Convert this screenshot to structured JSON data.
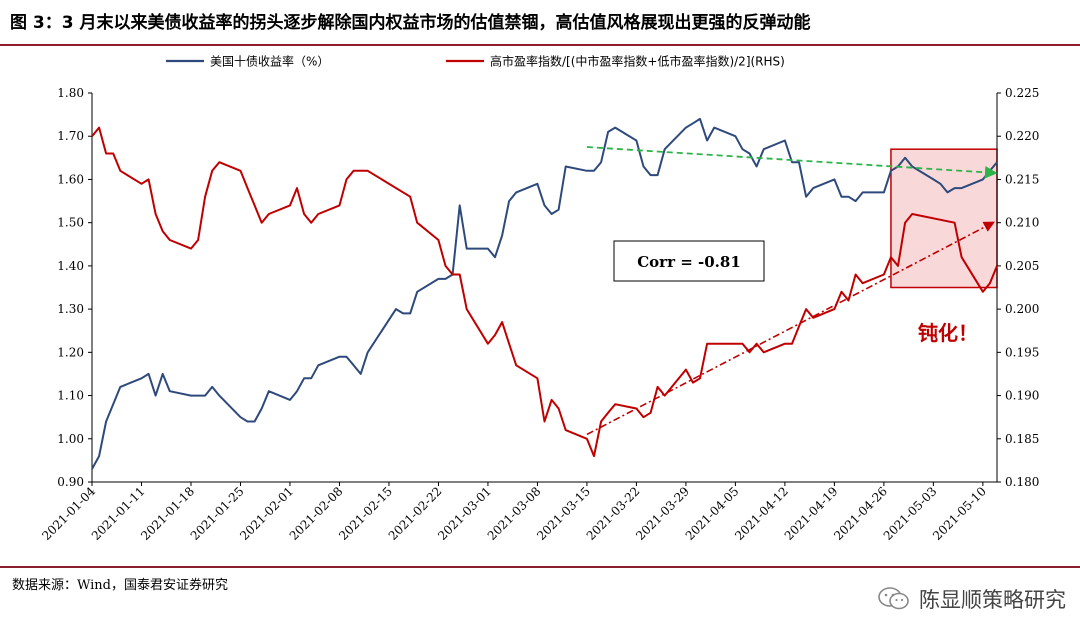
{
  "figure": {
    "title": "图 3：3 月末以来美债收益率的拐头逐步解除国内权益市场的估值禁锢，高估值风格展现出更强的反弹动能",
    "source": "数据来源：Wind，国泰君安证券研究",
    "watermark": "陈显顺策略研究"
  },
  "chart_data": {
    "type": "line",
    "title": "",
    "legend_position": "top",
    "grid": false,
    "x_ticks": [
      "2021-01-04",
      "2021-01-11",
      "2021-01-18",
      "2021-01-25",
      "2021-02-01",
      "2021-02-08",
      "2021-02-15",
      "2021-02-22",
      "2021-03-01",
      "2021-03-08",
      "2021-03-15",
      "2021-03-22",
      "2021-03-29",
      "2021-04-05",
      "2021-04-12",
      "2021-04-19",
      "2021-04-26",
      "2021-05-03",
      "2021-05-10"
    ],
    "x_range": [
      "2021-01-04",
      "2021-05-12"
    ],
    "y_left": {
      "ylim": [
        0.9,
        1.8
      ],
      "ticks": [
        "0.90",
        "1.00",
        "1.10",
        "1.20",
        "1.30",
        "1.40",
        "1.50",
        "1.60",
        "1.70",
        "1.80"
      ]
    },
    "y_right": {
      "ylim": [
        0.18,
        0.225
      ],
      "ticks": [
        "0.180",
        "0.185",
        "0.190",
        "0.195",
        "0.200",
        "0.205",
        "0.210",
        "0.215",
        "0.220",
        "0.225"
      ]
    },
    "series": [
      {
        "name": "美国十债收益率（%）",
        "color": "#2e4a7d",
        "axis": "left",
        "points": [
          [
            "2021-01-04",
            0.93
          ],
          [
            "2021-01-05",
            0.96
          ],
          [
            "2021-01-06",
            1.04
          ],
          [
            "2021-01-07",
            1.08
          ],
          [
            "2021-01-08",
            1.12
          ],
          [
            "2021-01-11",
            1.14
          ],
          [
            "2021-01-12",
            1.15
          ],
          [
            "2021-01-13",
            1.1
          ],
          [
            "2021-01-14",
            1.15
          ],
          [
            "2021-01-15",
            1.11
          ],
          [
            "2021-01-18",
            1.1
          ],
          [
            "2021-01-19",
            1.1
          ],
          [
            "2021-01-20",
            1.1
          ],
          [
            "2021-01-21",
            1.12
          ],
          [
            "2021-01-22",
            1.1
          ],
          [
            "2021-01-25",
            1.05
          ],
          [
            "2021-01-26",
            1.04
          ],
          [
            "2021-01-27",
            1.04
          ],
          [
            "2021-01-28",
            1.07
          ],
          [
            "2021-01-29",
            1.11
          ],
          [
            "2021-02-01",
            1.09
          ],
          [
            "2021-02-02",
            1.11
          ],
          [
            "2021-02-03",
            1.14
          ],
          [
            "2021-02-04",
            1.14
          ],
          [
            "2021-02-05",
            1.17
          ],
          [
            "2021-02-08",
            1.19
          ],
          [
            "2021-02-09",
            1.19
          ],
          [
            "2021-02-10",
            1.17
          ],
          [
            "2021-02-11",
            1.15
          ],
          [
            "2021-02-12",
            1.2
          ],
          [
            "2021-02-16",
            1.3
          ],
          [
            "2021-02-17",
            1.29
          ],
          [
            "2021-02-18",
            1.29
          ],
          [
            "2021-02-19",
            1.34
          ],
          [
            "2021-02-22",
            1.37
          ],
          [
            "2021-02-23",
            1.37
          ],
          [
            "2021-02-24",
            1.38
          ],
          [
            "2021-02-25",
            1.54
          ],
          [
            "2021-02-26",
            1.44
          ],
          [
            "2021-03-01",
            1.44
          ],
          [
            "2021-03-02",
            1.42
          ],
          [
            "2021-03-03",
            1.47
          ],
          [
            "2021-03-04",
            1.55
          ],
          [
            "2021-03-05",
            1.57
          ],
          [
            "2021-03-08",
            1.59
          ],
          [
            "2021-03-09",
            1.54
          ],
          [
            "2021-03-10",
            1.52
          ],
          [
            "2021-03-11",
            1.53
          ],
          [
            "2021-03-12",
            1.63
          ],
          [
            "2021-03-15",
            1.62
          ],
          [
            "2021-03-16",
            1.62
          ],
          [
            "2021-03-17",
            1.64
          ],
          [
            "2021-03-18",
            1.71
          ],
          [
            "2021-03-19",
            1.72
          ],
          [
            "2021-03-22",
            1.69
          ],
          [
            "2021-03-23",
            1.63
          ],
          [
            "2021-03-24",
            1.61
          ],
          [
            "2021-03-25",
            1.61
          ],
          [
            "2021-03-26",
            1.67
          ],
          [
            "2021-03-29",
            1.72
          ],
          [
            "2021-03-30",
            1.73
          ],
          [
            "2021-03-31",
            1.74
          ],
          [
            "2021-04-01",
            1.69
          ],
          [
            "2021-04-02",
            1.72
          ],
          [
            "2021-04-05",
            1.7
          ],
          [
            "2021-04-06",
            1.67
          ],
          [
            "2021-04-07",
            1.66
          ],
          [
            "2021-04-08",
            1.63
          ],
          [
            "2021-04-09",
            1.67
          ],
          [
            "2021-04-12",
            1.69
          ],
          [
            "2021-04-13",
            1.64
          ],
          [
            "2021-04-14",
            1.64
          ],
          [
            "2021-04-15",
            1.56
          ],
          [
            "2021-04-16",
            1.58
          ],
          [
            "2021-04-19",
            1.6
          ],
          [
            "2021-04-20",
            1.56
          ],
          [
            "2021-04-21",
            1.56
          ],
          [
            "2021-04-22",
            1.55
          ],
          [
            "2021-04-23",
            1.57
          ],
          [
            "2021-04-26",
            1.57
          ],
          [
            "2021-04-27",
            1.62
          ],
          [
            "2021-04-28",
            1.63
          ],
          [
            "2021-04-29",
            1.65
          ],
          [
            "2021-04-30",
            1.63
          ],
          [
            "2021-05-03",
            1.6
          ],
          [
            "2021-05-04",
            1.59
          ],
          [
            "2021-05-05",
            1.57
          ],
          [
            "2021-05-06",
            1.58
          ],
          [
            "2021-05-07",
            1.58
          ],
          [
            "2021-05-10",
            1.6
          ],
          [
            "2021-05-11",
            1.62
          ],
          [
            "2021-05-12",
            1.64
          ]
        ]
      },
      {
        "name": "高市盈率指数/[(中市盈率指数+低市盈率指数)/2](RHS)",
        "color": "#c00000",
        "axis": "right",
        "points": [
          [
            "2021-01-04",
            0.22
          ],
          [
            "2021-01-05",
            0.221
          ],
          [
            "2021-01-06",
            0.218
          ],
          [
            "2021-01-07",
            0.218
          ],
          [
            "2021-01-08",
            0.216
          ],
          [
            "2021-01-11",
            0.2145
          ],
          [
            "2021-01-12",
            0.215
          ],
          [
            "2021-01-13",
            0.211
          ],
          [
            "2021-01-14",
            0.209
          ],
          [
            "2021-01-15",
            0.208
          ],
          [
            "2021-01-18",
            0.207
          ],
          [
            "2021-01-19",
            0.208
          ],
          [
            "2021-01-20",
            0.213
          ],
          [
            "2021-01-21",
            0.216
          ],
          [
            "2021-01-22",
            0.217
          ],
          [
            "2021-01-25",
            0.216
          ],
          [
            "2021-01-26",
            0.214
          ],
          [
            "2021-01-27",
            0.212
          ],
          [
            "2021-01-28",
            0.21
          ],
          [
            "2021-01-29",
            0.211
          ],
          [
            "2021-02-01",
            0.212
          ],
          [
            "2021-02-02",
            0.214
          ],
          [
            "2021-02-03",
            0.211
          ],
          [
            "2021-02-04",
            0.21
          ],
          [
            "2021-02-05",
            0.211
          ],
          [
            "2021-02-08",
            0.212
          ],
          [
            "2021-02-09",
            0.215
          ],
          [
            "2021-02-10",
            0.216
          ],
          [
            "2021-02-11",
            0.216
          ],
          [
            "2021-02-12",
            0.216
          ],
          [
            "2021-02-18",
            0.213
          ],
          [
            "2021-02-19",
            0.21
          ],
          [
            "2021-02-22",
            0.208
          ],
          [
            "2021-02-23",
            0.205
          ],
          [
            "2021-02-24",
            0.204
          ],
          [
            "2021-02-25",
            0.204
          ],
          [
            "2021-02-26",
            0.2
          ],
          [
            "2021-03-01",
            0.196
          ],
          [
            "2021-03-02",
            0.197
          ],
          [
            "2021-03-03",
            0.1985
          ],
          [
            "2021-03-04",
            0.196
          ],
          [
            "2021-03-05",
            0.1935
          ],
          [
            "2021-03-08",
            0.192
          ],
          [
            "2021-03-09",
            0.187
          ],
          [
            "2021-03-10",
            0.1895
          ],
          [
            "2021-03-11",
            0.1885
          ],
          [
            "2021-03-12",
            0.186
          ],
          [
            "2021-03-15",
            0.185
          ],
          [
            "2021-03-16",
            0.183
          ],
          [
            "2021-03-17",
            0.187
          ],
          [
            "2021-03-18",
            0.188
          ],
          [
            "2021-03-19",
            0.189
          ],
          [
            "2021-03-22",
            0.1885
          ],
          [
            "2021-03-23",
            0.1875
          ],
          [
            "2021-03-24",
            0.188
          ],
          [
            "2021-03-25",
            0.191
          ],
          [
            "2021-03-26",
            0.19
          ],
          [
            "2021-03-29",
            0.193
          ],
          [
            "2021-03-30",
            0.1915
          ],
          [
            "2021-03-31",
            0.192
          ],
          [
            "2021-04-01",
            0.196
          ],
          [
            "2021-04-02",
            0.196
          ],
          [
            "2021-04-06",
            0.196
          ],
          [
            "2021-04-07",
            0.195
          ],
          [
            "2021-04-08",
            0.196
          ],
          [
            "2021-04-09",
            0.195
          ],
          [
            "2021-04-12",
            0.196
          ],
          [
            "2021-04-13",
            0.196
          ],
          [
            "2021-04-14",
            0.198
          ],
          [
            "2021-04-15",
            0.2
          ],
          [
            "2021-04-16",
            0.199
          ],
          [
            "2021-04-19",
            0.2
          ],
          [
            "2021-04-20",
            0.202
          ],
          [
            "2021-04-21",
            0.201
          ],
          [
            "2021-04-22",
            0.204
          ],
          [
            "2021-04-23",
            0.203
          ],
          [
            "2021-04-26",
            0.204
          ],
          [
            "2021-04-27",
            0.206
          ],
          [
            "2021-04-28",
            0.205
          ],
          [
            "2021-04-29",
            0.21
          ],
          [
            "2021-04-30",
            0.211
          ],
          [
            "2021-05-06",
            0.21
          ],
          [
            "2021-05-07",
            0.206
          ],
          [
            "2021-05-10",
            0.202
          ],
          [
            "2021-05-11",
            0.203
          ],
          [
            "2021-05-12",
            0.205
          ]
        ]
      }
    ],
    "annotations": {
      "corr_label": "Corr = -0.81",
      "dulled_label": "钝化！",
      "highlight_box": {
        "x0": "2021-04-27",
        "x1": "2021-05-12",
        "y_right": [
          0.2025,
          0.2185
        ]
      },
      "blue_trend_arrow": {
        "from": [
          "2021-03-15",
          1.675
        ],
        "to": [
          "2021-05-12",
          1.615
        ],
        "color": "#2db34a"
      },
      "red_trend_arrow": {
        "from": [
          "2021-03-15",
          0.1855
        ],
        "to": [
          "2021-05-12",
          0.21
        ],
        "color": "#c00000"
      }
    }
  }
}
